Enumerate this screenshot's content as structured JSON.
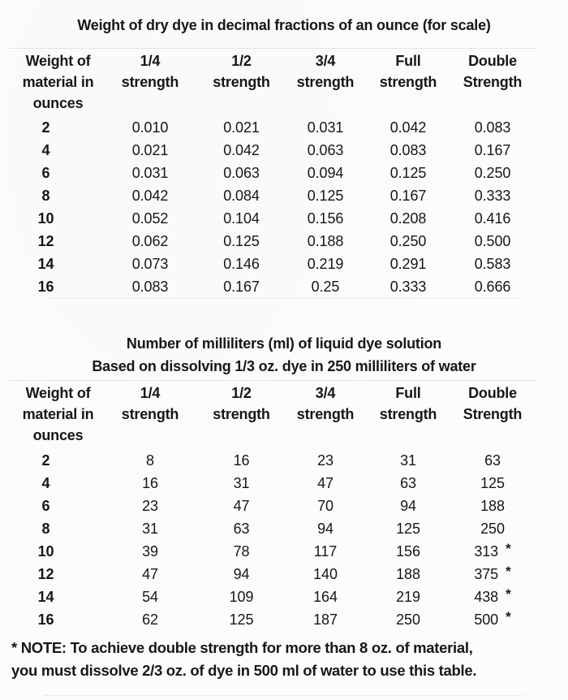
{
  "page": {
    "background": "#fcfcfa",
    "text_color": "#171717"
  },
  "table1": {
    "title": "Weight of dry dye in decimal fractions of an ounce (for scale)",
    "headers": [
      "Weight of\nmaterial in\nounces",
      "1/4\nstrength",
      "1/2\nstrength",
      "3/4\nstrength",
      "Full\nstrength",
      "Double\nStrength"
    ],
    "rows": [
      [
        "2",
        "0.010",
        "0.021",
        "0.031",
        "0.042",
        "0.083"
      ],
      [
        "4",
        "0.021",
        "0.042",
        "0.063",
        "0.083",
        "0.167"
      ],
      [
        "6",
        "0.031",
        "0.063",
        "0.094",
        "0.125",
        "0.250"
      ],
      [
        "8",
        "0.042",
        "0.084",
        "0.125",
        "0.167",
        "0.333"
      ],
      [
        "10",
        "0.052",
        "0.104",
        "0.156",
        "0.208",
        "0.416"
      ],
      [
        "12",
        "0.062",
        "0.125",
        "0.188",
        "0.250",
        "0.500"
      ],
      [
        "14",
        "0.073",
        "0.146",
        "0.219",
        "0.291",
        "0.583"
      ],
      [
        "16",
        "0.083",
        "0.167",
        "0.25",
        "0.333",
        "0.666"
      ]
    ]
  },
  "table2": {
    "title": "Number of milliliters (ml) of liquid dye solution",
    "subtitle": "Based on dissolving 1/3 oz. dye in 250 milliliters of water",
    "headers": [
      "Weight of\nmaterial in\nounces",
      "1/4\nstrength",
      "1/2\nstrength",
      "3/4\nstrength",
      "Full\nstrength",
      "Double\nStrength"
    ],
    "rows": [
      [
        "2",
        "8",
        "16",
        "23",
        "31",
        "63"
      ],
      [
        "4",
        "16",
        "31",
        "47",
        "63",
        "125"
      ],
      [
        "6",
        "23",
        "47",
        "70",
        "94",
        "188"
      ],
      [
        "8",
        "31",
        "63",
        "94",
        "125",
        "250"
      ],
      [
        "10",
        "39",
        "78",
        "117",
        "156",
        "313"
      ],
      [
        "12",
        "47",
        "94",
        "140",
        "188",
        "375"
      ],
      [
        "14",
        "54",
        "109",
        "164",
        "219",
        "438"
      ],
      [
        "16",
        "62",
        "125",
        "187",
        "250",
        "500"
      ]
    ],
    "asterisk": "*"
  },
  "note": {
    "line1": "* NOTE: To achieve double strength for more than 8 oz. of material,",
    "line2": "you must dissolve 2/3 oz. of dye in 500 ml of water to use this table."
  }
}
